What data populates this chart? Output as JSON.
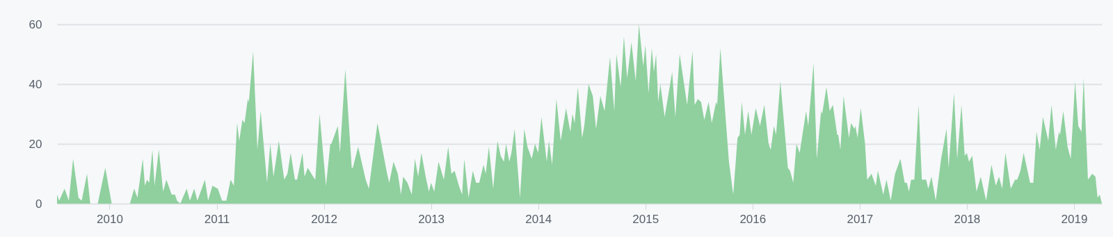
{
  "chart_data": {
    "type": "area",
    "color": "#8fd09e",
    "grid": "y",
    "xlim": [
      2009.51,
      2019.26
    ],
    "ylim": [
      0,
      60
    ],
    "xticks": [
      2010,
      2011,
      2012,
      2013,
      2014,
      2015,
      2016,
      2017,
      2018,
      2019
    ],
    "yticks": [
      0,
      20,
      40,
      60
    ],
    "x": [
      2009.51,
      2009.53,
      2009.58,
      2009.62,
      2009.66,
      2009.71,
      2009.74,
      2009.79,
      2009.82,
      2009.89,
      2009.96,
      2010.02,
      2010.19,
      2010.23,
      2010.26,
      2010.31,
      2010.33,
      2010.35,
      2010.37,
      2010.4,
      2010.42,
      2010.46,
      2010.5,
      2010.53,
      2010.58,
      2010.61,
      2010.63,
      2010.66,
      2010.72,
      2010.75,
      2010.79,
      2010.82,
      2010.89,
      2010.92,
      2010.96,
      2011.01,
      2011.05,
      2011.09,
      2011.13,
      2011.16,
      2011.19,
      2011.21,
      2011.24,
      2011.26,
      2011.29,
      2011.3,
      2011.34,
      2011.38,
      2011.41,
      2011.47,
      2011.5,
      2011.53,
      2011.58,
      2011.63,
      2011.66,
      2011.69,
      2011.73,
      2011.75,
      2011.8,
      2011.82,
      2011.85,
      2011.9,
      2011.92,
      2011.96,
      2012.02,
      2012.06,
      2012.07,
      2012.13,
      2012.15,
      2012.2,
      2012.26,
      2012.27,
      2012.32,
      2012.39,
      2012.42,
      2012.5,
      2012.59,
      2012.61,
      2012.65,
      2012.69,
      2012.72,
      2012.74,
      2012.78,
      2012.82,
      2012.85,
      2012.88,
      2012.91,
      2012.95,
      2012.98,
      2013.0,
      2013.03,
      2013.07,
      2013.12,
      2013.16,
      2013.19,
      2013.22,
      2013.26,
      2013.29,
      2013.31,
      2013.35,
      2013.39,
      2013.42,
      2013.45,
      2013.49,
      2013.51,
      2013.54,
      2013.58,
      2013.62,
      2013.65,
      2013.68,
      2013.7,
      2013.73,
      2013.75,
      2013.78,
      2013.83,
      2013.87,
      2013.9,
      2013.94,
      2013.97,
      2014.0,
      2014.03,
      2014.08,
      2014.1,
      2014.13,
      2014.17,
      2014.21,
      2014.26,
      2014.3,
      2014.32,
      2014.34,
      2014.37,
      2014.41,
      2014.43,
      2014.47,
      2014.51,
      2014.54,
      2014.58,
      2014.62,
      2014.67,
      2014.71,
      2014.73,
      2014.77,
      2014.8,
      2014.83,
      2014.87,
      2014.91,
      2014.94,
      2014.98,
      2015.0,
      2015.03,
      2015.06,
      2015.08,
      2015.1,
      2015.12,
      2015.14,
      2015.18,
      2015.25,
      2015.28,
      2015.32,
      2015.39,
      2015.44,
      2015.46,
      2015.49,
      2015.52,
      2015.55,
      2015.59,
      2015.62,
      2015.66,
      2015.67,
      2015.7,
      2015.78,
      2015.82,
      2015.86,
      2015.88,
      2015.9,
      2015.93,
      2015.96,
      2015.99,
      2016.03,
      2016.07,
      2016.11,
      2016.15,
      2016.17,
      2016.2,
      2016.22,
      2016.26,
      2016.33,
      2016.35,
      2016.38,
      2016.41,
      2016.44,
      2016.5,
      2016.52,
      2016.57,
      2016.6,
      2016.64,
      2016.65,
      2016.69,
      2016.72,
      2016.75,
      2016.79,
      2016.8,
      2016.82,
      2016.85,
      2016.9,
      2016.92,
      2016.95,
      2016.96,
      2016.98,
      2017.01,
      2017.05,
      2017.07,
      2017.11,
      2017.15,
      2017.17,
      2017.22,
      2017.25,
      2017.29,
      2017.33,
      2017.38,
      2017.42,
      2017.44,
      2017.46,
      2017.48,
      2017.51,
      2017.55,
      2017.58,
      2017.62,
      2017.64,
      2017.67,
      2017.71,
      2017.76,
      2017.81,
      2017.83,
      2017.88,
      2017.91,
      2017.95,
      2017.98,
      2018.0,
      2018.02,
      2018.05,
      2018.09,
      2018.13,
      2018.18,
      2018.23,
      2018.27,
      2018.3,
      2018.33,
      2018.36,
      2018.41,
      2018.45,
      2018.47,
      2018.5,
      2018.53,
      2018.59,
      2018.62,
      2018.65,
      2018.68,
      2018.71,
      2018.76,
      2018.79,
      2018.83,
      2018.86,
      2018.87,
      2018.9,
      2018.94,
      2018.97,
      2019.01,
      2019.04,
      2019.07,
      2019.09,
      2019.13,
      2019.17,
      2019.2,
      2019.22,
      2019.24,
      2019.26
    ],
    "values": [
      3,
      1,
      5,
      1,
      15,
      2,
      1,
      10,
      0,
      0,
      12,
      0,
      0,
      5,
      2,
      15,
      6,
      8,
      7,
      18,
      6,
      18,
      4,
      8,
      3,
      3,
      1,
      0,
      5,
      1,
      5,
      1,
      8,
      1,
      6,
      5,
      1,
      1,
      8,
      6,
      27,
      21,
      28,
      27,
      35,
      34,
      51,
      18,
      31,
      7,
      20,
      9,
      21,
      8,
      10,
      17,
      8,
      8,
      17,
      9,
      12,
      9,
      8,
      30,
      6,
      20,
      20,
      26,
      17,
      45,
      12,
      12,
      19,
      8,
      5,
      27,
      10,
      7,
      14,
      10,
      3,
      9,
      7,
      3,
      15,
      9,
      17,
      9,
      4,
      7,
      4,
      14,
      8,
      19,
      10,
      11,
      6,
      3,
      15,
      2,
      11,
      7,
      7,
      13,
      10,
      19,
      5,
      21,
      16,
      14,
      20,
      14,
      17,
      25,
      2,
      25,
      19,
      15,
      20,
      17,
      29,
      14,
      21,
      13,
      35,
      21,
      32,
      24,
      30,
      27,
      39,
      22,
      26,
      40,
      36,
      25,
      36,
      31,
      49,
      31,
      50,
      39,
      56,
      42,
      54,
      41,
      60,
      46,
      53,
      37,
      52,
      44,
      50,
      34,
      40,
      29,
      44,
      29,
      50,
      33,
      51,
      33,
      35,
      34,
      28,
      34,
      27,
      34,
      33,
      52,
      14,
      3,
      22,
      23,
      34,
      23,
      31,
      23,
      32,
      26,
      33,
      20,
      18,
      26,
      23,
      41,
      12,
      11,
      7,
      20,
      17,
      31,
      26,
      47,
      15,
      31,
      30,
      39,
      31,
      33,
      23,
      23,
      18,
      36,
      22,
      27,
      25,
      26,
      22,
      32,
      20,
      8,
      10,
      6,
      11,
      3,
      8,
      1,
      10,
      15,
      7,
      7,
      4,
      8,
      8,
      33,
      8,
      8,
      5,
      9,
      1,
      15,
      25,
      12,
      37,
      15,
      33,
      16,
      17,
      14,
      16,
      4,
      9,
      1,
      13,
      6,
      9,
      5,
      17,
      5,
      8,
      8,
      11,
      17,
      7,
      7,
      24,
      18,
      29,
      21,
      33,
      18,
      24,
      23,
      31,
      19,
      15,
      41,
      26,
      24,
      42,
      8,
      10,
      9,
      2,
      3,
      0
    ]
  }
}
